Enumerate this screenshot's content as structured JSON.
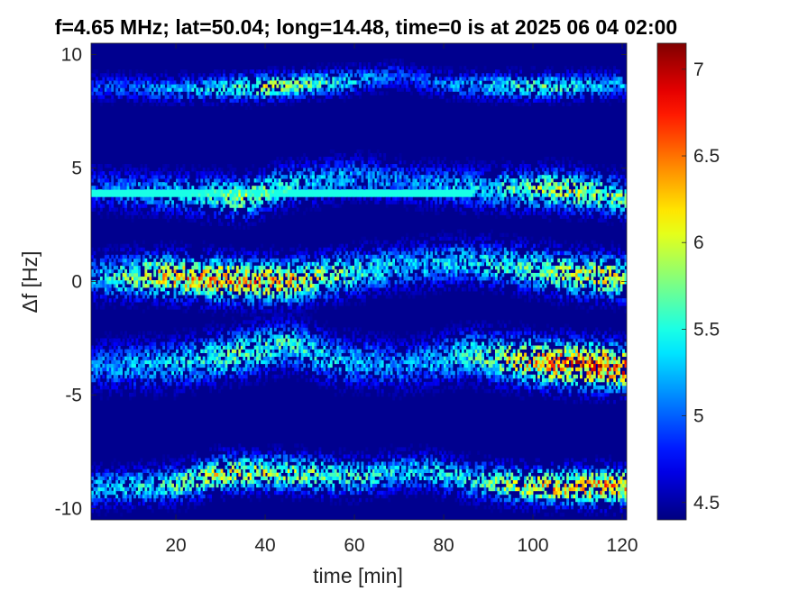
{
  "chart_data": {
    "type": "heatmap",
    "title": "f=4.65 MHz;  lat=50.04; long=14.48, time=0 is at 2025 06 04 02:00",
    "xlabel": "time [min]",
    "ylabel": "Δf [Hz]",
    "xlim": [
      1,
      121
    ],
    "ylim": [
      -10.5,
      10.5
    ],
    "x_ticks": [
      20,
      40,
      60,
      80,
      100,
      120
    ],
    "y_ticks": [
      -10,
      -5,
      0,
      5,
      10
    ],
    "colorbar": {
      "clim": [
        4.4,
        7.15
      ],
      "ticks": [
        4.5,
        5,
        5.5,
        6,
        6.5,
        7
      ],
      "colormap": "jet"
    },
    "background_value": 4.4,
    "grid": false,
    "bands": [
      {
        "name": "+8.5 Hz",
        "center": [
          [
            1,
            8.5
          ],
          [
            20,
            8.4
          ],
          [
            40,
            8.5
          ],
          [
            55,
            8.7
          ],
          [
            70,
            9.0
          ],
          [
            80,
            8.6
          ],
          [
            100,
            8.5
          ],
          [
            121,
            8.6
          ]
        ],
        "width": 0.7,
        "intensity": [
          [
            1,
            5.0
          ],
          [
            25,
            5.4
          ],
          [
            40,
            6.1
          ],
          [
            55,
            5.6
          ],
          [
            70,
            5.0
          ],
          [
            80,
            5.2
          ],
          [
            100,
            5.8
          ],
          [
            121,
            5.3
          ]
        ]
      },
      {
        "name": "+4 Hz",
        "center": [
          [
            1,
            4.0
          ],
          [
            20,
            3.8
          ],
          [
            35,
            3.6
          ],
          [
            45,
            4.2
          ],
          [
            60,
            4.5
          ],
          [
            75,
            4.2
          ],
          [
            90,
            4.0
          ],
          [
            105,
            4.0
          ],
          [
            121,
            3.6
          ]
        ],
        "width": 1.1,
        "intensity": [
          [
            1,
            5.1
          ],
          [
            25,
            5.5
          ],
          [
            35,
            6.0
          ],
          [
            50,
            5.4
          ],
          [
            70,
            5.2
          ],
          [
            90,
            5.5
          ],
          [
            105,
            6.1
          ],
          [
            121,
            5.8
          ]
        ]
      },
      {
        "name": "0 Hz",
        "center": [
          [
            1,
            0.1
          ],
          [
            15,
            0.2
          ],
          [
            30,
            0.0
          ],
          [
            45,
            -0.1
          ],
          [
            55,
            0.2
          ],
          [
            70,
            0.6
          ],
          [
            85,
            0.8
          ],
          [
            95,
            0.6
          ],
          [
            110,
            0.2
          ],
          [
            121,
            0.1
          ]
        ],
        "width": 1.2,
        "intensity": [
          [
            1,
            5.3
          ],
          [
            15,
            6.3
          ],
          [
            30,
            6.6
          ],
          [
            45,
            6.5
          ],
          [
            55,
            5.9
          ],
          [
            70,
            5.4
          ],
          [
            85,
            5.5
          ],
          [
            100,
            5.8
          ],
          [
            115,
            6.3
          ],
          [
            121,
            6.0
          ]
        ]
      },
      {
        "name": "-3.7 Hz",
        "center": [
          [
            1,
            -3.8
          ],
          [
            20,
            -3.7
          ],
          [
            35,
            -3.2
          ],
          [
            45,
            -2.8
          ],
          [
            55,
            -3.5
          ],
          [
            70,
            -3.8
          ],
          [
            85,
            -3.3
          ],
          [
            100,
            -3.6
          ],
          [
            115,
            -3.8
          ],
          [
            121,
            -3.9
          ]
        ],
        "width": 1.3,
        "intensity": [
          [
            1,
            5.2
          ],
          [
            20,
            5.5
          ],
          [
            35,
            5.8
          ],
          [
            50,
            5.6
          ],
          [
            70,
            5.2
          ],
          [
            85,
            5.6
          ],
          [
            100,
            6.5
          ],
          [
            112,
            6.9
          ],
          [
            121,
            6.7
          ]
        ]
      },
      {
        "name": "-9 Hz",
        "center": [
          [
            1,
            -9.2
          ],
          [
            20,
            -9.0
          ],
          [
            30,
            -8.5
          ],
          [
            45,
            -8.5
          ],
          [
            60,
            -8.7
          ],
          [
            75,
            -8.4
          ],
          [
            85,
            -8.8
          ],
          [
            100,
            -9.1
          ],
          [
            121,
            -9.1
          ]
        ],
        "width": 1.0,
        "intensity": [
          [
            1,
            5.4
          ],
          [
            15,
            5.6
          ],
          [
            30,
            6.2
          ],
          [
            50,
            5.9
          ],
          [
            70,
            5.5
          ],
          [
            85,
            5.6
          ],
          [
            100,
            6.3
          ],
          [
            115,
            6.7
          ],
          [
            121,
            6.5
          ]
        ]
      }
    ],
    "carrier_line": {
      "y": 3.9,
      "x_range": [
        1,
        86
      ],
      "value": 5.5
    }
  }
}
